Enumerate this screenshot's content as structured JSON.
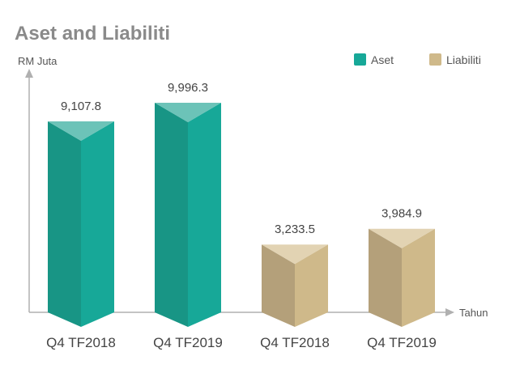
{
  "chart_data": {
    "type": "bar",
    "title": "Aset and Liabiliti",
    "ylabel": "RM Juta",
    "xlabel": "Tahun",
    "categories": [
      "Q4 TF2018",
      "Q4 TF2019",
      "Q4 TF2018",
      "Q4 TF2019"
    ],
    "values": [
      9107.8,
      9996.3,
      3233.5,
      3984.9
    ],
    "value_labels": [
      "9,107.8",
      "9,996.3",
      "3,233.5",
      "3,984.9"
    ],
    "series_of_bar": [
      "Aset",
      "Aset",
      "Liabiliti",
      "Liabiliti"
    ],
    "series": [
      {
        "name": "Aset",
        "color": "#17a898"
      },
      {
        "name": "Liabiliti",
        "color": "#cfb98a"
      }
    ],
    "ylim": [
      0,
      12000
    ],
    "grid": false,
    "legend_position": "top-right",
    "style": "3d-prism"
  }
}
